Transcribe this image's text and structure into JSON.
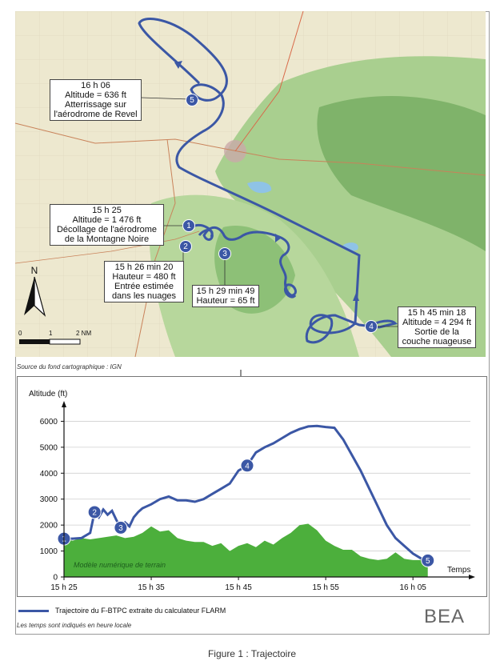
{
  "map": {
    "callouts": [
      {
        "id": "c5",
        "text": "16 h 06\nAltitude = 636 ft\nAtterrissage sur\nl'aérodrome de Revel"
      },
      {
        "id": "c1",
        "text": "15 h 25\nAltitude = 1 476 ft\nDécollage de l'aérodrome\nde la Montagne Noire"
      },
      {
        "id": "c2",
        "text": "15 h 26 min 20\nHauteur = 480 ft\nEntrée estimée\ndans les nuages"
      },
      {
        "id": "c3",
        "text": "15 h 29 min 49\nHauteur = 65 ft"
      },
      {
        "id": "c4",
        "text": "15 h 45 min 18\nAltitude = 4 294 ft\nSortie de la\ncouche nuageuse"
      }
    ],
    "markers": [
      "1",
      "2",
      "3",
      "4",
      "5"
    ],
    "north_label": "N",
    "scale": {
      "labels": [
        "0",
        "1",
        "2 NM"
      ]
    },
    "source": "Source du fond cartographique : IGN",
    "colors": {
      "track": "#3b57a5",
      "relief": "#8fbf7a",
      "lowland": "#ece6c8"
    }
  },
  "chart_data": {
    "type": "area",
    "ylabel": "Altitude (ft)",
    "xlabel": "Temps",
    "x_ticks": [
      "15 h 25",
      "15 h 35",
      "15 h 45",
      "15 h 55",
      "16 h 05"
    ],
    "y_ticks": [
      0,
      1000,
      2000,
      3000,
      4000,
      5000,
      6000
    ],
    "ylim": [
      0,
      6600
    ],
    "xlim_minutes": [
      0,
      42
    ],
    "grid": "horizontal",
    "terrain_label": "Modèle numérique de terrain",
    "series": [
      {
        "name": "Trajectoire du F-BTPC extraite du calculateur FLARM",
        "color": "#3b57a5",
        "x": [
          0,
          1,
          2,
          3,
          3.5,
          4,
          4.5,
          5,
          5.5,
          6,
          6.5,
          7,
          7.5,
          8,
          8.5,
          9,
          10,
          11,
          12,
          13,
          14,
          15,
          16,
          17,
          18,
          19,
          20,
          21,
          22,
          23,
          24,
          25,
          26,
          27,
          28,
          29,
          30,
          31,
          32,
          33,
          34,
          35,
          36,
          37,
          38,
          39,
          40,
          41,
          41.7
        ],
        "y": [
          1480,
          1476,
          1500,
          1700,
          2500,
          2300,
          2600,
          2400,
          2550,
          2200,
          1900,
          2100,
          1950,
          2300,
          2500,
          2650,
          2800,
          3000,
          3100,
          2950,
          2950,
          2900,
          3000,
          3200,
          3400,
          3600,
          4100,
          4294,
          4800,
          5000,
          5150,
          5350,
          5550,
          5700,
          5800,
          5820,
          5780,
          5750,
          5300,
          4700,
          4100,
          3400,
          2700,
          2000,
          1500,
          1200,
          900,
          700,
          636
        ]
      },
      {
        "name": "Modèle numérique de terrain",
        "color": "#4caf3c",
        "x": [
          0,
          1,
          2,
          3,
          4,
          5,
          6,
          7,
          8,
          9,
          10,
          11,
          12,
          13,
          14,
          15,
          16,
          17,
          18,
          19,
          20,
          21,
          22,
          23,
          24,
          25,
          26,
          27,
          28,
          29,
          30,
          31,
          32,
          33,
          34,
          35,
          36,
          37,
          38,
          39,
          40,
          41,
          41.7
        ],
        "y": [
          1450,
          1400,
          1500,
          1450,
          1500,
          1550,
          1600,
          1500,
          1550,
          1700,
          1950,
          1750,
          1800,
          1500,
          1400,
          1350,
          1350,
          1200,
          1300,
          1000,
          1200,
          1300,
          1150,
          1400,
          1250,
          1500,
          1700,
          2000,
          2050,
          1800,
          1400,
          1200,
          1050,
          1050,
          800,
          700,
          650,
          700,
          950,
          700,
          650,
          650,
          650
        ]
      }
    ],
    "annotations": [
      {
        "label": "1",
        "x": 0,
        "y": 1476
      },
      {
        "label": "2",
        "x": 3.5,
        "y": 2500
      },
      {
        "label": "3",
        "x": 6.5,
        "y": 1900
      },
      {
        "label": "4",
        "x": 21,
        "y": 4294
      },
      {
        "label": "5",
        "x": 41.7,
        "y": 636
      }
    ]
  },
  "legend": {
    "label": "Trajectoire du F-BTPC extraite du calculateur FLARM"
  },
  "footnote": "Les temps sont indiqués en heure locale",
  "logo": "BEA",
  "caption": "Figure 1 : Trajectoire"
}
